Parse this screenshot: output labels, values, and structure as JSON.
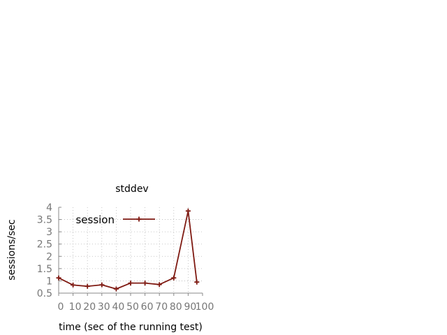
{
  "chart_data": {
    "type": "line",
    "title": "stddev",
    "xlabel": "time (sec of the running test)",
    "ylabel": "sessions/sec",
    "xlim": [
      0,
      100
    ],
    "ylim": [
      0.5,
      4
    ],
    "xticks": [
      "0",
      "10",
      "20",
      "30",
      "40",
      "50",
      "60",
      "70",
      "80",
      "90",
      "100"
    ],
    "yticks": [
      "0.5",
      "1",
      "1.5",
      "2",
      "2.5",
      "3",
      "3.5",
      "4"
    ],
    "grid": true,
    "legend_position": "top-left",
    "series": [
      {
        "name": "session",
        "color": "#7f1a12",
        "marker": "plus",
        "x": [
          0,
          10,
          20,
          30,
          40,
          50,
          60,
          70,
          80,
          90,
          96
        ],
        "y": [
          1.12,
          0.83,
          0.78,
          0.84,
          0.67,
          0.91,
          0.91,
          0.85,
          1.12,
          3.85,
          0.95
        ]
      }
    ]
  }
}
